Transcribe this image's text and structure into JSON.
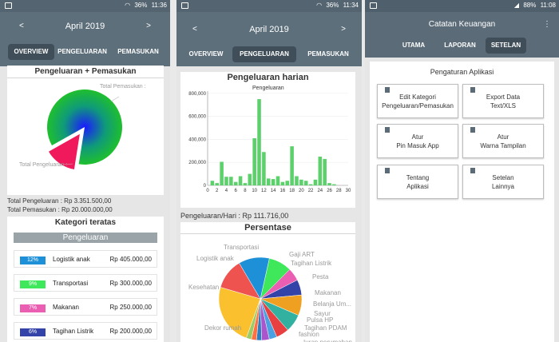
{
  "screen1": {
    "status": {
      "battery": "36%",
      "time": "11:36"
    },
    "month": "April 2019",
    "arrow_left": "<",
    "arrow_right": ">",
    "tabs": [
      "OVERVIEW",
      "PENGELUARAN",
      "PEMASUKAN"
    ],
    "chart_title": "Pengeluaran + Pemasukan",
    "pie_labels": {
      "pemasukan": "Total Pemasukan :",
      "pengeluaran": "Total Pengeluaran :"
    },
    "totals": {
      "pengeluaran": "Total Pengeluaran : Rp 3.351.500,00",
      "pemasukan": "Total Pemasukan : Rp 20.000.000,00"
    },
    "kategori_title": "Kategori teratas",
    "kategori_header": "Pengeluaran",
    "categories": [
      {
        "pct": "12%",
        "name": "Logistik anak",
        "amount": "Rp 405.000,00",
        "color": "#1e90d8"
      },
      {
        "pct": "9%",
        "name": "Transportasi",
        "amount": "Rp 300.000,00",
        "color": "#3ee85a"
      },
      {
        "pct": "7%",
        "name": "Makanan",
        "amount": "Rp 250.000,00",
        "color": "#ea5fb2"
      },
      {
        "pct": "6%",
        "name": "Tagihan Listrik",
        "amount": "Rp 200.000,00",
        "color": "#3343a8"
      }
    ]
  },
  "screen2": {
    "status": {
      "battery": "36%",
      "time": "11:34"
    },
    "month": "April 2019",
    "arrow_left": "<",
    "arrow_right": ">",
    "tabs": [
      "OVERVIEW",
      "PENGELUARAN",
      "PEMASUKAN"
    ],
    "chart_title": "Pengeluaran harian",
    "per_day": "Pengeluaran/Hari : Rp 111.716,00",
    "persentase_title": "Persentase",
    "pie_labels": [
      "Transportasi",
      "Logistik anak",
      "Kesehatan",
      "Dekor rumah",
      "Gaji ART",
      "Tagihan Listrik",
      "Pesta",
      "Makanan",
      "Belanja Um...",
      "Sayur",
      "Pulsa HP",
      "Tagihan PDAM",
      "fashion",
      "Iuran perumahan"
    ]
  },
  "screen3": {
    "status": {
      "battery": "88%",
      "time": "11:08"
    },
    "title": "Catatan Keuangan",
    "menu": "⋮",
    "tabs": [
      "UTAMA",
      "LAPORAN",
      "SETELAN"
    ],
    "section_title": "Pengaturan Aplikasi",
    "buttons": [
      {
        "line1": "Edit Kategori",
        "line2": "Pengeluaran/Pemasukan"
      },
      {
        "line1": "Export Data",
        "line2": "Text/XLS"
      },
      {
        "line1": "Atur",
        "line2": "Pin Masuk App"
      },
      {
        "line1": "Atur",
        "line2": "Warna Tampilan"
      },
      {
        "line1": "Tentang",
        "line2": "Aplikasi"
      },
      {
        "line1": "Setelan",
        "line2": "Lainnya"
      }
    ]
  },
  "chart_data": [
    {
      "type": "pie",
      "title": "Pengeluaran + Pemasukan",
      "categories": [
        "Total Pemasukan",
        "Total Pengeluaran"
      ],
      "values": [
        20000000,
        3351500
      ],
      "colors": [
        "#1fbf2e",
        "#f0195b"
      ]
    },
    {
      "type": "bar",
      "title": "Pengeluaran harian",
      "series": [
        {
          "name": "Pengeluaran",
          "values": [
            40000,
            20000,
            205000,
            75000,
            75000,
            30000,
            80000,
            20000,
            100000,
            410000,
            750000,
            290000,
            60000,
            55000,
            80000,
            30000,
            40000,
            340000,
            80000,
            50000,
            40000,
            10000,
            50000,
            250000,
            230000,
            20000,
            10000,
            0,
            0,
            0
          ]
        }
      ],
      "x": [
        1,
        2,
        3,
        4,
        5,
        6,
        7,
        8,
        9,
        10,
        11,
        12,
        13,
        14,
        15,
        16,
        17,
        18,
        19,
        20,
        21,
        22,
        23,
        24,
        25,
        26,
        27,
        28,
        29,
        30
      ],
      "xticks": [
        "0",
        "2",
        "4",
        "6",
        "8",
        "10",
        "12",
        "14",
        "16",
        "18",
        "20",
        "22",
        "24",
        "26",
        "28",
        "30"
      ],
      "yticks": [
        "0",
        "200,000",
        "400,000",
        "600,000",
        "800,000"
      ],
      "ylim": [
        0,
        820000
      ],
      "color": "#5cd06a"
    },
    {
      "type": "pie",
      "title": "Persentase",
      "categories": [
        "Transportasi",
        "Gaji ART",
        "Tagihan Listrik",
        "Pesta",
        "Makanan",
        "Belanja Um...",
        "Sayur",
        "Pulsa HP",
        "Tagihan PDAM",
        "fashion",
        "Iuran perumahan",
        "Dekor rumah",
        "Kesehatan",
        "Logistik anak"
      ],
      "values": [
        9,
        5,
        6,
        8,
        7,
        5,
        3,
        3,
        2,
        2,
        2,
        24,
        12,
        12
      ],
      "colors": [
        "#3ee85a",
        "#ea5fb2",
        "#3343a8",
        "#f0a020",
        "#32b0a0",
        "#e84040",
        "#4aa0e0",
        "#aa55cc",
        "#2c7fc0",
        "#ff7043",
        "#9ccc65",
        "#fbc02d",
        "#ef5350",
        "#1e90d8"
      ]
    }
  ]
}
